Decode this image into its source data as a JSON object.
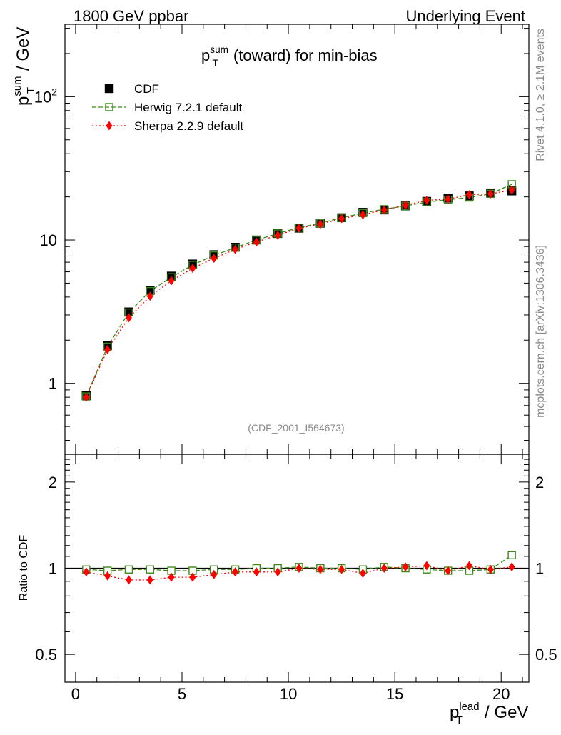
{
  "header": {
    "left": "1800 GeV ppbar",
    "right": "Underlying Event"
  },
  "side_labels": {
    "rivet": "Rivet 4.1.0, ≥ 2.1M events",
    "source": "mcplots.cern.ch [arXiv:1306.3436]"
  },
  "analysis_tag": "(CDF_2001_I564673)",
  "colors": {
    "cdf": "#000000",
    "herwig": "#3a8a14",
    "sherpa": "#ff0000",
    "tag": "#8a8a8a"
  },
  "chart_data": [
    {
      "type": "line",
      "panel": "main",
      "title": {
        "base": "p",
        "sup": "sum",
        "sub": "T",
        "rest": " (toward) for min-bias"
      },
      "ylabel": {
        "base": "p",
        "sup": "sum",
        "sub": "T",
        "rest": " / GeV"
      },
      "xlabel": "",
      "yscale": "log",
      "xlim": [
        -0.5,
        21.3
      ],
      "ylim": [
        0.32,
        320
      ],
      "ytick_labels": [
        {
          "value": 1,
          "base": "1",
          "exp": ""
        },
        {
          "value": 10,
          "base": "10",
          "exp": ""
        },
        {
          "value": 100,
          "base": "10",
          "exp": "2"
        }
      ],
      "legend": {
        "position": "top-left",
        "entries": [
          {
            "key": "cdf",
            "label": "CDF"
          },
          {
            "key": "herwig",
            "label": "Herwig 7.2.1 default"
          },
          {
            "key": "sherpa",
            "label": "Sherpa 2.2.9 default"
          }
        ]
      },
      "x": [
        0.5,
        1.5,
        2.5,
        3.5,
        4.5,
        5.5,
        6.5,
        7.5,
        8.5,
        9.5,
        10.5,
        11.5,
        12.5,
        13.5,
        14.5,
        15.5,
        16.5,
        17.5,
        18.5,
        19.5,
        20.5
      ],
      "series": [
        {
          "key": "cdf",
          "name": "CDF",
          "values": [
            0.82,
            1.83,
            3.15,
            4.45,
            5.6,
            6.8,
            7.9,
            8.9,
            10.0,
            11.1,
            12.1,
            13.1,
            14.3,
            15.6,
            16.2,
            17.3,
            18.6,
            19.6,
            20.3,
            21.3,
            22.0
          ]
        },
        {
          "key": "herwig",
          "name": "Herwig 7.2.1 default",
          "values": [
            0.81,
            1.8,
            3.12,
            4.4,
            5.5,
            6.7,
            7.8,
            8.85,
            10.0,
            11.1,
            12.2,
            13.1,
            14.3,
            15.4,
            16.4,
            17.3,
            18.4,
            19.1,
            19.8,
            21.0,
            24.5
          ]
        },
        {
          "key": "sherpa",
          "name": "Sherpa 2.2.9 default",
          "values": [
            0.8,
            1.72,
            2.87,
            4.05,
            5.2,
            6.35,
            7.45,
            8.6,
            9.7,
            10.8,
            12.1,
            12.9,
            14.1,
            15.0,
            16.2,
            17.5,
            18.9,
            19.3,
            20.7,
            21.0,
            22.3
          ]
        }
      ]
    },
    {
      "type": "line",
      "panel": "ratio",
      "ylabel": "Ratio to CDF",
      "xlabel": {
        "base": "p",
        "sup": "lead",
        "sub": "T",
        "rest": " / GeV"
      },
      "yscale": "log",
      "xlim": [
        -0.5,
        21.3
      ],
      "ylim": [
        0.4,
        2.5
      ],
      "ytick_labels": [
        "0.5",
        "1",
        "2"
      ],
      "xtick_labels": [
        "0",
        "5",
        "10",
        "15",
        "20"
      ],
      "x": [
        0.5,
        1.5,
        2.5,
        3.5,
        4.5,
        5.5,
        6.5,
        7.5,
        8.5,
        9.5,
        10.5,
        11.5,
        12.5,
        13.5,
        14.5,
        15.5,
        16.5,
        17.5,
        18.5,
        19.5,
        20.5
      ],
      "series": [
        {
          "key": "herwig",
          "name": "Herwig 7.2.1 default",
          "values": [
            0.99,
            0.98,
            0.99,
            0.99,
            0.98,
            0.98,
            0.99,
            0.99,
            1.0,
            1.0,
            1.01,
            1.0,
            1.0,
            0.99,
            1.01,
            1.0,
            0.99,
            0.98,
            0.98,
            0.99,
            1.11
          ]
        },
        {
          "key": "sherpa",
          "name": "Sherpa 2.2.9 default",
          "values": [
            0.97,
            0.94,
            0.91,
            0.91,
            0.93,
            0.93,
            0.95,
            0.97,
            0.97,
            0.97,
            1.0,
            0.99,
            0.99,
            0.96,
            1.0,
            1.01,
            1.02,
            0.98,
            1.02,
            0.99,
            1.01
          ]
        }
      ],
      "reference": 1
    }
  ]
}
